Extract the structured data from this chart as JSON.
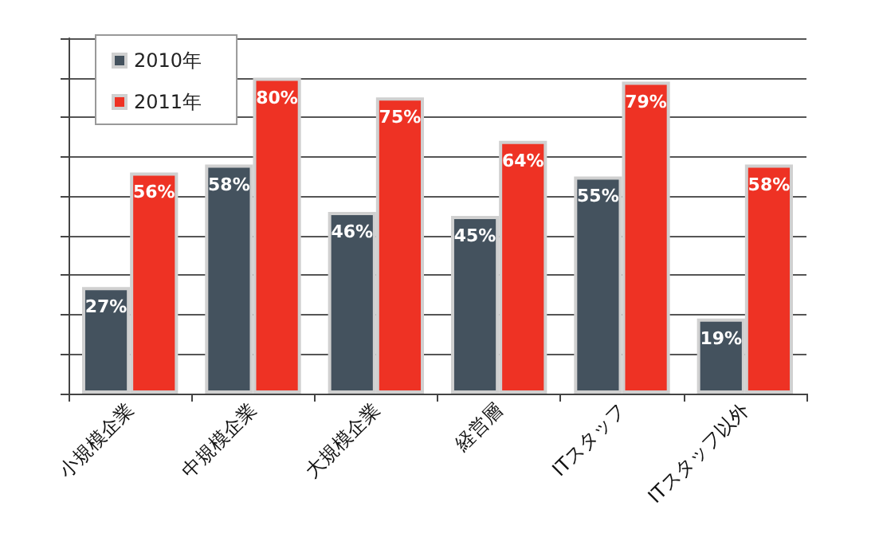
{
  "chart_data": {
    "type": "bar",
    "categories": [
      "小規模企業",
      "中規模企業",
      "大規模企業",
      "経営層",
      "ITスタッフ",
      "ITスタッフ以外"
    ],
    "series": [
      {
        "name": "2010年",
        "color": "#44525e",
        "values": [
          27,
          58,
          46,
          45,
          55,
          19
        ],
        "value_labels": [
          "27%",
          "58%",
          "46%",
          "45%",
          "55%",
          "19%"
        ]
      },
      {
        "name": "2011年",
        "color": "#ee3224",
        "values": [
          56,
          80,
          75,
          64,
          79,
          58
        ],
        "value_labels": [
          "56%",
          "80%",
          "75%",
          "64%",
          "79%",
          "58%"
        ]
      }
    ],
    "ylim": [
      0,
      90
    ],
    "yticks": [
      {
        "value": 0,
        "label": null
      },
      {
        "value": 10,
        "label": null
      },
      {
        "value": 20,
        "label": null
      },
      {
        "value": 30,
        "label": null
      },
      {
        "value": 40,
        "label": null
      },
      {
        "value": 50,
        "label": null
      },
      {
        "value": 60,
        "label": null
      },
      {
        "value": 70,
        "label": null
      },
      {
        "value": 80,
        "label": null
      }
    ],
    "tick_labels": "x",
    "grid": "y",
    "legend": "top left"
  }
}
